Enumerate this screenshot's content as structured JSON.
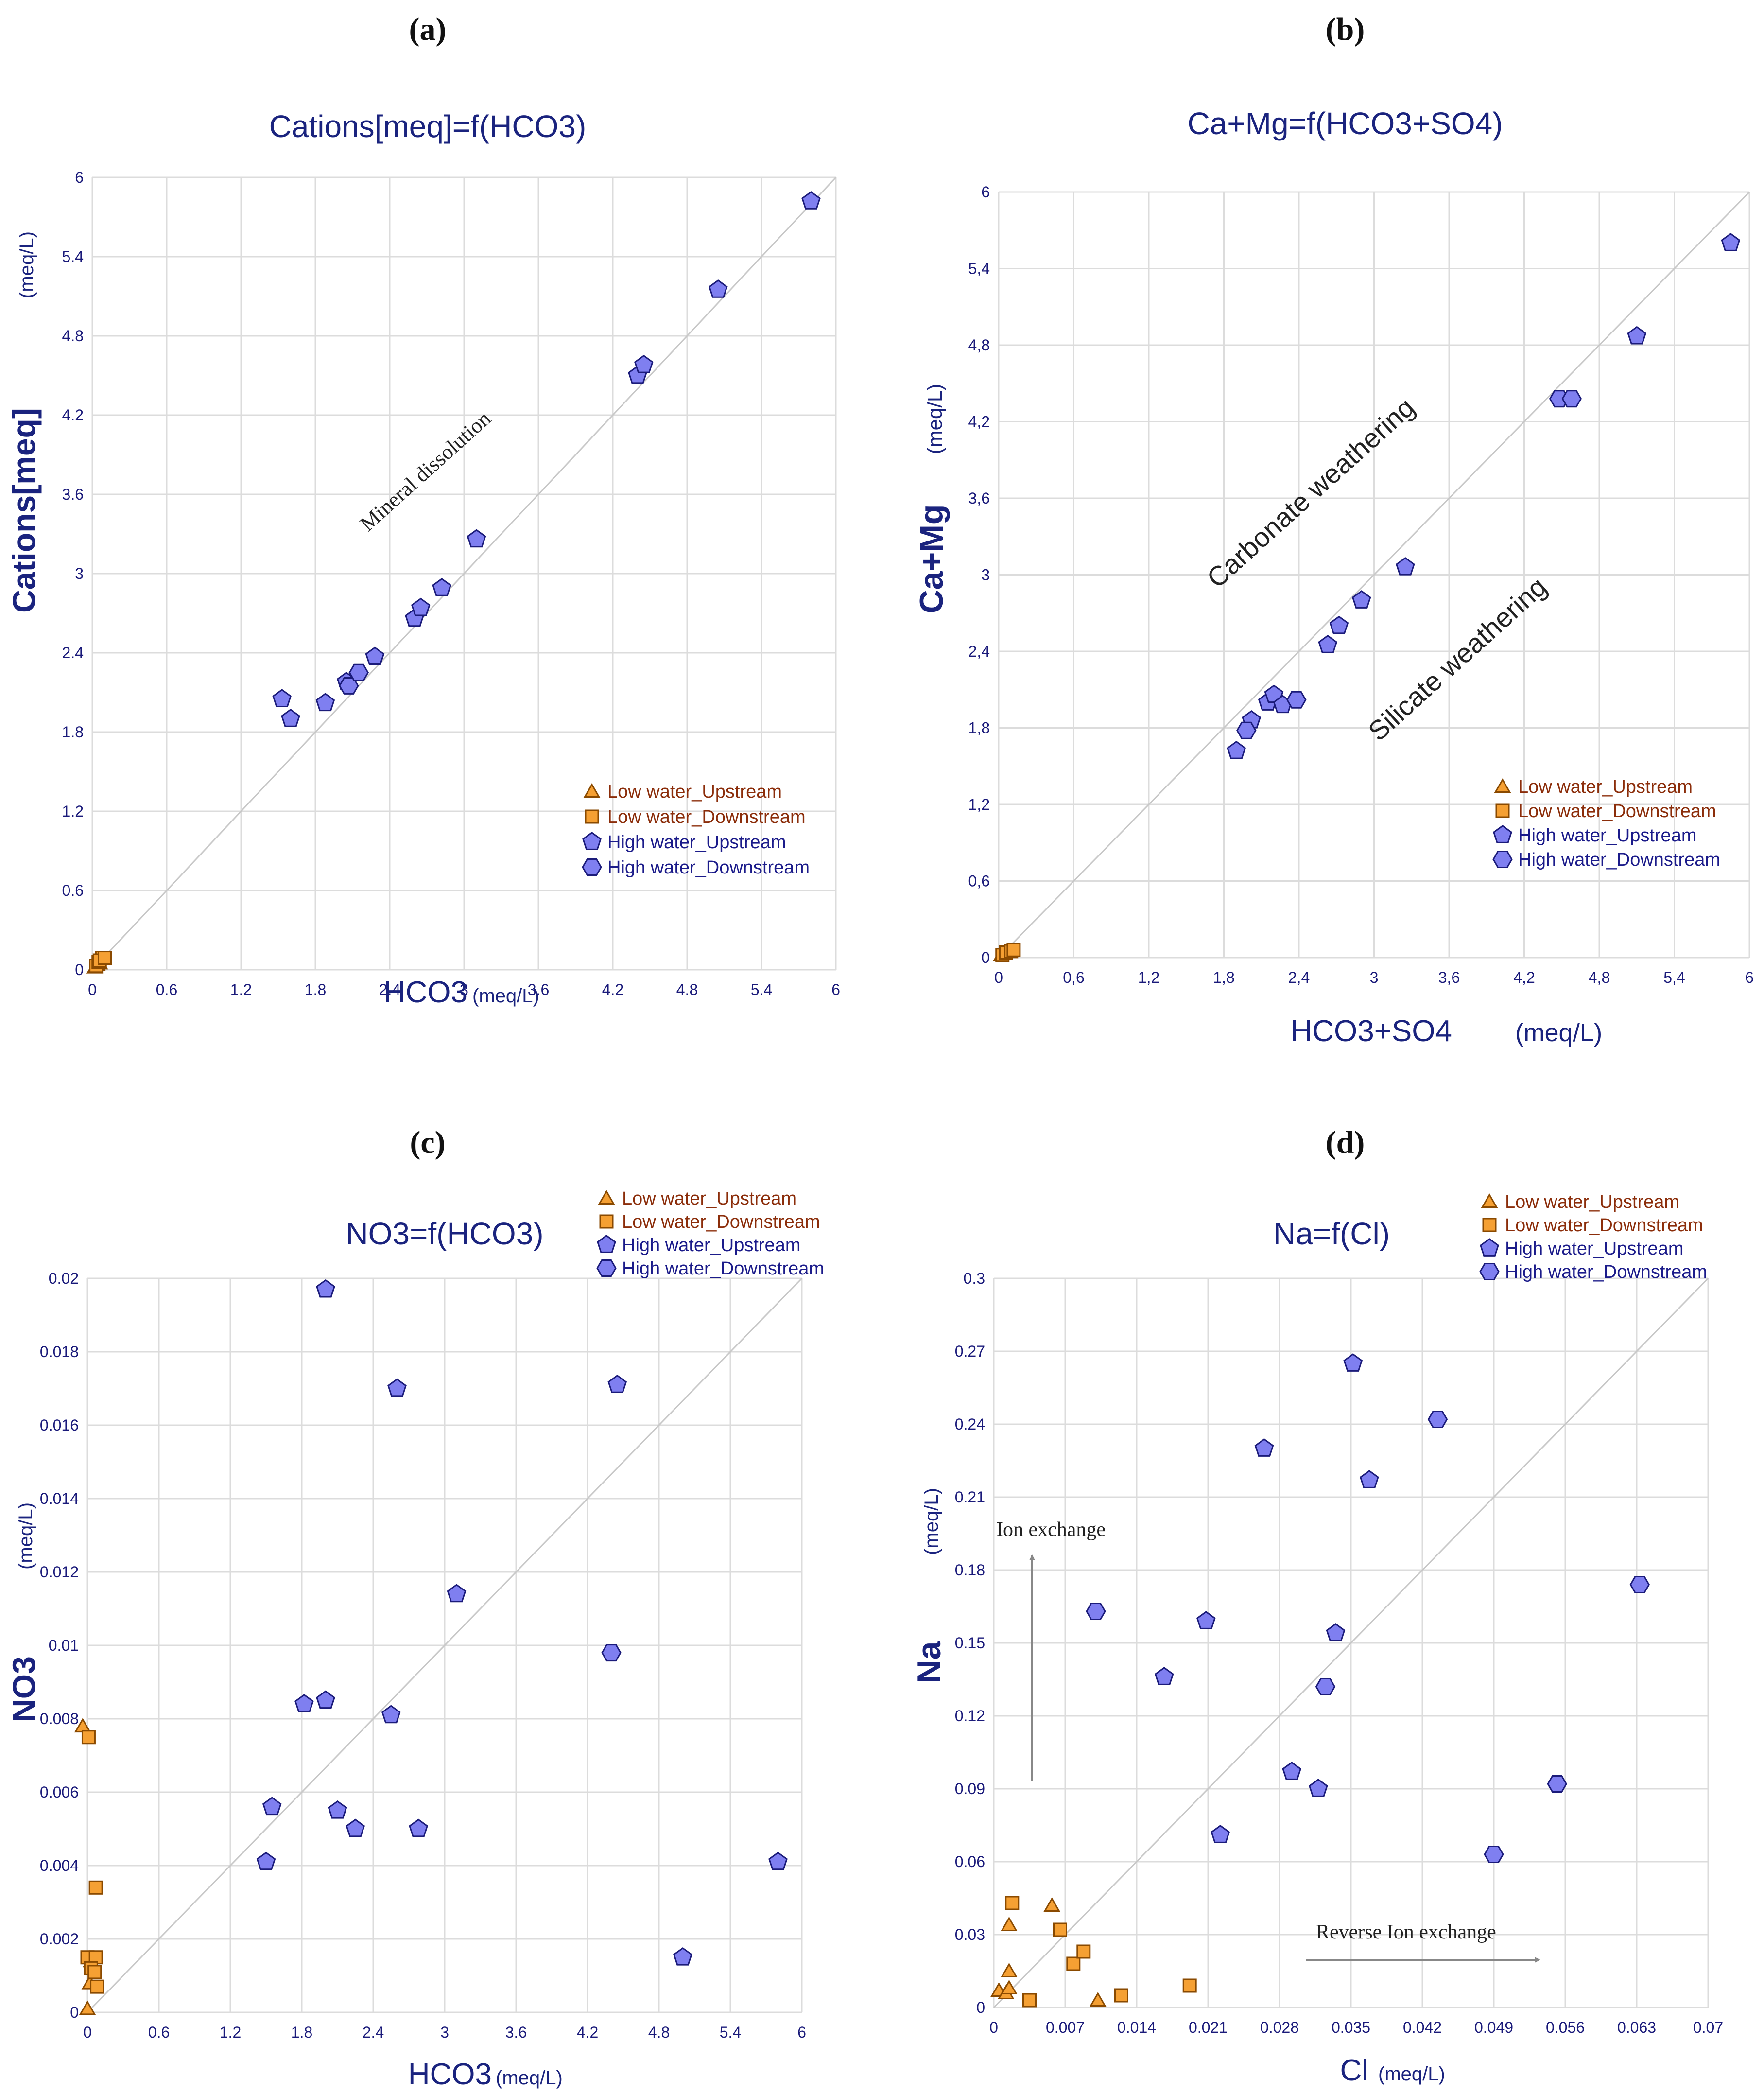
{
  "colors": {
    "axis_text": "#1a1a7a",
    "title": "#1a237e",
    "grid": "#dcdcdc",
    "diagonal": "#c8c8c8",
    "orange": "#f5a033",
    "orange_stroke": "#8a4a00",
    "blue": "#7f7ff0",
    "blue_stroke": "#1b1b7a",
    "legend_orange_text": "#8b2d0a",
    "legend_blue_text": "#1b1b8a",
    "annotation": "#222222",
    "arrow": "#888888"
  },
  "legend": {
    "low_up": "Low water_Upstream",
    "low_down": "Low water_Downstream",
    "high_up": "High water_Upstream",
    "high_down": "High water_Downstream"
  },
  "chart_data": [
    {
      "id": "a",
      "panel_label": "(a)",
      "type": "scatter",
      "title": "Cations[meq]=f(HCO3)",
      "xlabel": "HCO3",
      "xunit": "(meq/L)",
      "ylabel": "Cations[meq]",
      "yunit": "(meq/L)",
      "xlim": [
        0,
        6
      ],
      "ylim": [
        0,
        6
      ],
      "xticks": [
        "0",
        "0.6",
        "1.2",
        "1.8",
        "2.4",
        "3",
        "3.6",
        "4.2",
        "4.8",
        "5.4",
        "6"
      ],
      "yticks": [
        "0",
        "0.6",
        "1.2",
        "1.8",
        "2.4",
        "3",
        "3.6",
        "4.2",
        "4.8",
        "5.4",
        "6"
      ],
      "annotations": [
        {
          "text": "Mineral dissolution"
        }
      ],
      "series": [
        {
          "name": "Low water_Upstream",
          "marker": "triangle",
          "points": [
            [
              0.02,
              0.02
            ],
            [
              0.04,
              0.04
            ],
            [
              0.06,
              0.05
            ]
          ]
        },
        {
          "name": "Low water_Downstream",
          "marker": "square",
          "points": [
            [
              0.03,
              0.03
            ],
            [
              0.05,
              0.06
            ],
            [
              0.08,
              0.09
            ],
            [
              0.06,
              0.07
            ],
            [
              0.1,
              0.09
            ]
          ]
        },
        {
          "name": "High water_Upstream",
          "marker": "pentagon",
          "points": [
            [
              1.53,
              2.05
            ],
            [
              1.6,
              1.9
            ],
            [
              1.88,
              2.02
            ],
            [
              2.05,
              2.18
            ],
            [
              2.28,
              2.37
            ],
            [
              2.6,
              2.66
            ],
            [
              2.65,
              2.74
            ],
            [
              2.82,
              2.89
            ],
            [
              3.1,
              3.26
            ],
            [
              4.4,
              4.5
            ],
            [
              4.45,
              4.58
            ],
            [
              5.05,
              5.15
            ],
            [
              5.8,
              5.82
            ]
          ]
        },
        {
          "name": "High water_Downstream",
          "marker": "hexagon",
          "points": [
            [
              2.07,
              2.15
            ],
            [
              2.15,
              2.25
            ]
          ]
        }
      ]
    },
    {
      "id": "b",
      "panel_label": "(b)",
      "type": "scatter",
      "title": "Ca+Mg=f(HCO3+SO4)",
      "xlabel": "HCO3+SO4",
      "xunit": "(meq/L)",
      "ylabel": "Ca+Mg",
      "yunit": "(meq/L)",
      "xlim": [
        0,
        6
      ],
      "ylim": [
        0,
        6
      ],
      "xticks": [
        "0",
        "0,6",
        "1,2",
        "1,8",
        "2,4",
        "3",
        "3,6",
        "4,2",
        "4,8",
        "5,4",
        "6"
      ],
      "yticks": [
        "0",
        "0,6",
        "1,2",
        "1,8",
        "2,4",
        "3",
        "3,6",
        "4,2",
        "4,8",
        "5,4",
        "6"
      ],
      "annotations": [
        {
          "text": "Carbonate weathering"
        },
        {
          "text": "Silicate weathering"
        }
      ],
      "series": [
        {
          "name": "Low water_Upstream",
          "marker": "triangle",
          "points": [
            [
              0.02,
              0.02
            ],
            [
              0.05,
              0.04
            ],
            [
              0.08,
              0.05
            ]
          ]
        },
        {
          "name": "Low water_Downstream",
          "marker": "square",
          "points": [
            [
              0.03,
              0.02
            ],
            [
              0.06,
              0.04
            ],
            [
              0.1,
              0.05
            ],
            [
              0.12,
              0.06
            ]
          ]
        },
        {
          "name": "High water_Upstream",
          "marker": "pentagon",
          "points": [
            [
              1.9,
              1.62
            ],
            [
              2.02,
              1.86
            ],
            [
              2.15,
              2.0
            ],
            [
              2.2,
              2.06
            ],
            [
              2.27,
              1.98
            ],
            [
              2.63,
              2.45
            ],
            [
              2.72,
              2.6
            ],
            [
              2.9,
              2.8
            ],
            [
              3.25,
              3.06
            ],
            [
              5.1,
              4.87
            ],
            [
              5.85,
              5.6
            ]
          ]
        },
        {
          "name": "High water_Downstream",
          "marker": "hexagon",
          "points": [
            [
              1.98,
              1.78
            ],
            [
              2.38,
              2.02
            ],
            [
              4.48,
              4.38
            ],
            [
              4.58,
              4.38
            ]
          ]
        }
      ]
    },
    {
      "id": "c",
      "panel_label": "(c)",
      "type": "scatter",
      "title": "NO3=f(HCO3)",
      "xlabel": "HCO3",
      "xunit": "(meq/L)",
      "ylabel": "NO3",
      "yunit": "(meq/L)",
      "xlim": [
        0,
        6
      ],
      "ylim": [
        0,
        0.02
      ],
      "xticks": [
        "0",
        "0.6",
        "1.2",
        "1.8",
        "2.4",
        "3",
        "3.6",
        "4.2",
        "4.8",
        "5.4",
        "6"
      ],
      "yticks": [
        "0",
        "0.002",
        "0.004",
        "0.006",
        "0.008",
        "0.01",
        "0.012",
        "0.014",
        "0.016",
        "0.018",
        "0.02"
      ],
      "annotations": [],
      "series": [
        {
          "name": "Low water_Upstream",
          "marker": "triangle",
          "points": [
            [
              -0.04,
              0.0078
            ],
            [
              0.03,
              0.0014
            ],
            [
              0.0,
              0.0001
            ],
            [
              0.02,
              0.0008
            ]
          ]
        },
        {
          "name": "Low water_Downstream",
          "marker": "square",
          "points": [
            [
              0.01,
              0.0075
            ],
            [
              0.07,
              0.0034
            ],
            [
              0.0,
              0.0015
            ],
            [
              0.07,
              0.0015
            ],
            [
              0.03,
              0.0012
            ],
            [
              0.06,
              0.0011
            ],
            [
              0.08,
              0.0007
            ]
          ]
        },
        {
          "name": "High water_Upstream",
          "marker": "pentagon",
          "points": [
            [
              2.0,
              0.0197
            ],
            [
              2.6,
              0.017
            ],
            [
              4.45,
              0.0171
            ],
            [
              3.1,
              0.0114
            ],
            [
              2.0,
              0.0085
            ],
            [
              1.82,
              0.0084
            ],
            [
              2.55,
              0.0081
            ],
            [
              1.55,
              0.0056
            ],
            [
              2.1,
              0.0055
            ],
            [
              2.25,
              0.005
            ],
            [
              2.78,
              0.005
            ],
            [
              1.5,
              0.0041
            ],
            [
              5.8,
              0.0041
            ],
            [
              5.0,
              0.0015
            ]
          ]
        },
        {
          "name": "High water_Downstream",
          "marker": "hexagon",
          "points": [
            [
              4.4,
              0.0098
            ]
          ]
        }
      ]
    },
    {
      "id": "d",
      "panel_label": "(d)",
      "type": "scatter",
      "title": "Na=f(Cl)",
      "xlabel": "Cl",
      "xunit": "(meq/L)",
      "ylabel": "Na",
      "yunit": "(meq/L)",
      "xlim": [
        0,
        0.07
      ],
      "ylim": [
        0,
        0.3
      ],
      "xticks": [
        "0",
        "0.007",
        "0.014",
        "0.021",
        "0.028",
        "0.035",
        "0.042",
        "0.049",
        "0.056",
        "0.063",
        "0.07"
      ],
      "yticks": [
        "0",
        "0.03",
        "0.06",
        "0.09",
        "0.12",
        "0.15",
        "0.18",
        "0.21",
        "0.24",
        "0.27",
        "0.3"
      ],
      "annotations": [
        {
          "text": "Ion exchange"
        },
        {
          "text": "Reverse Ion exchange"
        }
      ],
      "series": [
        {
          "name": "Low water_Upstream",
          "marker": "triangle",
          "points": [
            [
              0.0005,
              0.007
            ],
            [
              0.0012,
              0.006
            ],
            [
              0.0015,
              0.008
            ],
            [
              0.0015,
              0.015
            ],
            [
              0.0015,
              0.034
            ],
            [
              0.0057,
              0.042
            ],
            [
              0.0102,
              0.003
            ]
          ]
        },
        {
          "name": "Low water_Downstream",
          "marker": "square",
          "points": [
            [
              0.0018,
              0.043
            ],
            [
              0.0065,
              0.032
            ],
            [
              0.0078,
              0.018
            ],
            [
              0.0088,
              0.023
            ],
            [
              0.0125,
              0.005
            ],
            [
              0.0035,
              0.003
            ],
            [
              0.0192,
              0.009
            ]
          ]
        },
        {
          "name": "High water_Upstream",
          "marker": "pentagon",
          "points": [
            [
              0.0352,
              0.265
            ],
            [
              0.0265,
              0.23
            ],
            [
              0.0368,
              0.217
            ],
            [
              0.0208,
              0.159
            ],
            [
              0.0335,
              0.154
            ],
            [
              0.0167,
              0.136
            ],
            [
              0.0292,
              0.097
            ],
            [
              0.0222,
              0.071
            ],
            [
              0.0318,
              0.09
            ]
          ]
        },
        {
          "name": "High water_Downstream",
          "marker": "hexagon",
          "points": [
            [
              0.0435,
              0.242
            ],
            [
              0.01,
              0.163
            ],
            [
              0.0325,
              0.132
            ],
            [
              0.0633,
              0.174
            ],
            [
              0.0552,
              0.092
            ],
            [
              0.049,
              0.063
            ]
          ]
        }
      ]
    }
  ]
}
